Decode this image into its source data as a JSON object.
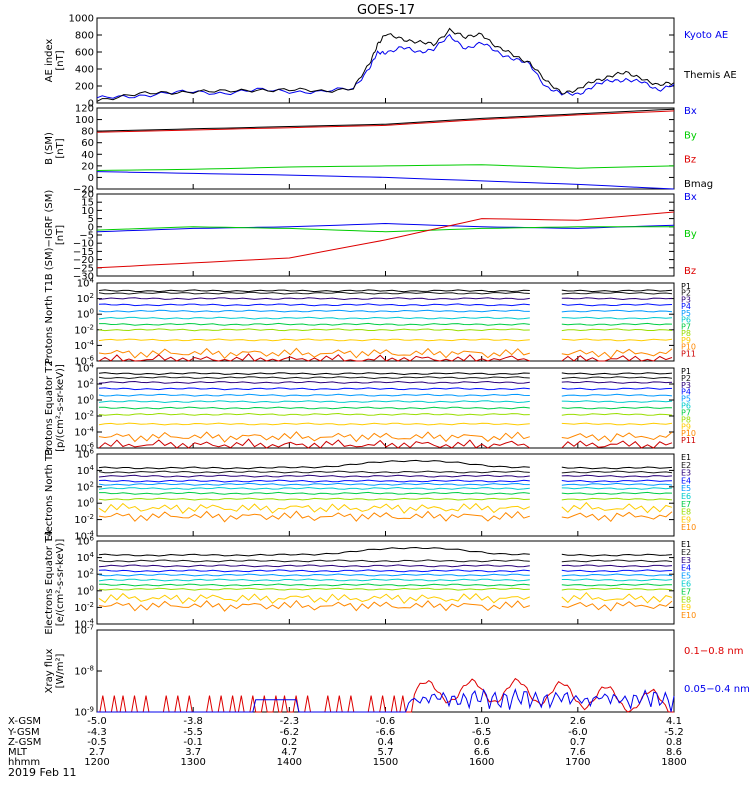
{
  "title": "GOES-17",
  "date_label": "2019 Feb 11",
  "colors": {
    "black": "#000000",
    "blue": "#0000ee",
    "green": "#00cc00",
    "red": "#dd0000",
    "bands": [
      "#000000",
      "#1a1a1a",
      "#2b007a",
      "#0010ff",
      "#0099ff",
      "#00cccc",
      "#00cc44",
      "#99dd00",
      "#ffcc00",
      "#ff8800",
      "#cc0000"
    ]
  },
  "time_axis": {
    "ticks": [
      "1200",
      "1300",
      "1400",
      "1500",
      "1600",
      "1700",
      "1800"
    ],
    "row_labels": [
      "X-GSM",
      "Y-GSM",
      "Z-GSM",
      "MLT",
      "hhmm"
    ],
    "rows": [
      [
        "-5.0",
        "-3.8",
        "-2.3",
        "-0.6",
        "1.0",
        "2.6",
        "4.1"
      ],
      [
        "-4.3",
        "-5.5",
        "-6.2",
        "-6.6",
        "-6.5",
        "-6.0",
        "-5.2"
      ],
      [
        "-0.5",
        "-0.1",
        "0.2",
        "0.4",
        "0.6",
        "0.7",
        "0.8"
      ],
      [
        "2.7",
        "3.7",
        "4.7",
        "5.7",
        "6.6",
        "7.6",
        "8.6"
      ],
      [
        "1200",
        "1300",
        "1400",
        "1500",
        "1600",
        "1700",
        "1800"
      ]
    ]
  },
  "chart_data": [
    {
      "type": "line",
      "ylabel": "AE index [nT]",
      "ylim": [
        0,
        1000
      ],
      "yticks": [
        "1000",
        "800",
        "600",
        "400",
        "200",
        "0"
      ],
      "series": [
        {
          "name": "Kyoto AE",
          "color": "#0000ee",
          "values": [
            [
              1200,
              50
            ],
            [
              1220,
              80
            ],
            [
              1240,
              110
            ],
            [
              1300,
              130
            ],
            [
              1320,
              120
            ],
            [
              1340,
              150
            ],
            [
              1400,
              140
            ],
            [
              1420,
              130
            ],
            [
              1440,
              170
            ],
            [
              1450,
              420
            ],
            [
              1455,
              580
            ],
            [
              1500,
              600
            ],
            [
              1510,
              650
            ],
            [
              1520,
              600
            ],
            [
              1530,
              640
            ],
            [
              1540,
              780
            ],
            [
              1550,
              650
            ],
            [
              1600,
              700
            ],
            [
              1610,
              600
            ],
            [
              1620,
              520
            ],
            [
              1630,
              450
            ],
            [
              1640,
              200
            ],
            [
              1650,
              100
            ],
            [
              1700,
              110
            ],
            [
              1710,
              200
            ],
            [
              1720,
              260
            ],
            [
              1730,
              280
            ],
            [
              1740,
              240
            ],
            [
              1750,
              160
            ],
            [
              1800,
              220
            ]
          ]
        },
        {
          "name": "Themis AE",
          "color": "#000000",
          "values": [
            [
              1200,
              40
            ],
            [
              1220,
              90
            ],
            [
              1240,
              120
            ],
            [
              1300,
              140
            ],
            [
              1320,
              130
            ],
            [
              1340,
              160
            ],
            [
              1400,
              150
            ],
            [
              1420,
              140
            ],
            [
              1440,
              180
            ],
            [
              1450,
              450
            ],
            [
              1455,
              700
            ],
            [
              1500,
              800
            ],
            [
              1510,
              760
            ],
            [
              1520,
              720
            ],
            [
              1530,
              680
            ],
            [
              1540,
              870
            ],
            [
              1550,
              760
            ],
            [
              1600,
              820
            ],
            [
              1610,
              650
            ],
            [
              1620,
              560
            ],
            [
              1630,
              480
            ],
            [
              1640,
              250
            ],
            [
              1650,
              130
            ],
            [
              1700,
              150
            ],
            [
              1710,
              260
            ],
            [
              1720,
              320
            ],
            [
              1730,
              350
            ],
            [
              1740,
              300
            ],
            [
              1750,
              200
            ],
            [
              1800,
              240
            ]
          ]
        }
      ]
    },
    {
      "type": "line",
      "ylabel": "B (SM) [nT]",
      "ylim": [
        -20,
        120
      ],
      "yticks": [
        "120",
        "100",
        "80",
        "60",
        "40",
        "20",
        "0",
        "−20"
      ],
      "series": [
        {
          "name": "Bx",
          "color": "#0000ee",
          "values": [
            [
              1200,
              10
            ],
            [
              1300,
              7
            ],
            [
              1400,
              4
            ],
            [
              1500,
              0
            ],
            [
              1600,
              -6
            ],
            [
              1700,
              -12
            ],
            [
              1800,
              -20
            ]
          ]
        },
        {
          "name": "By",
          "color": "#00cc00",
          "values": [
            [
              1200,
              12
            ],
            [
              1300,
              14
            ],
            [
              1400,
              18
            ],
            [
              1500,
              20
            ],
            [
              1600,
              22
            ],
            [
              1700,
              16
            ],
            [
              1800,
              20
            ]
          ]
        },
        {
          "name": "Bz",
          "color": "#dd0000",
          "values": [
            [
              1200,
              78
            ],
            [
              1300,
              82
            ],
            [
              1400,
              86
            ],
            [
              1500,
              90
            ],
            [
              1600,
              100
            ],
            [
              1700,
              108
            ],
            [
              1800,
              115
            ]
          ]
        },
        {
          "name": "Bmag",
          "color": "#000000",
          "values": [
            [
              1200,
              80
            ],
            [
              1300,
              84
            ],
            [
              1400,
              88
            ],
            [
              1500,
              92
            ],
            [
              1600,
              102
            ],
            [
              1700,
              110
            ],
            [
              1800,
              118
            ]
          ]
        }
      ]
    },
    {
      "type": "line",
      "ylabel": "B (SM)−IGRF (SM) [nT]",
      "ylim": [
        -30,
        20
      ],
      "yticks": [
        "20",
        "15",
        "10",
        "5",
        "0",
        "−5",
        "−10",
        "−15",
        "−20",
        "−25",
        "−30"
      ],
      "series": [
        {
          "name": "Bx",
          "color": "#0000ee",
          "values": [
            [
              1200,
              -3
            ],
            [
              1300,
              -1
            ],
            [
              1400,
              0
            ],
            [
              1500,
              2
            ],
            [
              1600,
              0
            ],
            [
              1700,
              -1
            ],
            [
              1800,
              1
            ]
          ]
        },
        {
          "name": "By",
          "color": "#00cc00",
          "values": [
            [
              1200,
              -2
            ],
            [
              1300,
              0
            ],
            [
              1400,
              -1
            ],
            [
              1500,
              -3
            ],
            [
              1600,
              -1
            ],
            [
              1700,
              0
            ],
            [
              1800,
              0
            ]
          ]
        },
        {
          "name": "Bz",
          "color": "#dd0000",
          "values": [
            [
              1200,
              -25
            ],
            [
              1300,
              -22
            ],
            [
              1400,
              -19
            ],
            [
              1500,
              -8
            ],
            [
              1600,
              5
            ],
            [
              1700,
              4
            ],
            [
              1800,
              9
            ]
          ]
        }
      ]
    },
    {
      "type": "line",
      "yscale": "log",
      "ylabel": "Protons North T1",
      "ylim_exp": [
        -6,
        4
      ],
      "yticks": [
        "10^4",
        "10^2",
        "10^0",
        "10^-2",
        "10^-4",
        "10^-6"
      ],
      "band_labels": [
        "P1",
        "P2",
        "P3",
        "P4",
        "P5",
        "P6",
        "P7",
        "P8",
        "P9",
        "P10",
        "P11"
      ],
      "levels_exp": [
        3.0,
        2.7,
        2.0,
        1.2,
        0.4,
        -0.5,
        -1.3,
        -2.0,
        -3.3,
        -5.0,
        -5.8
      ],
      "gap": [
        1630,
        1650
      ]
    },
    {
      "type": "line",
      "yscale": "log",
      "ylabel": "Protons Equator T2 [p/(cm²-s-sr-keV)]",
      "ylim_exp": [
        -6,
        4
      ],
      "yticks": [
        "10^4",
        "10^2",
        "10^0",
        "10^-2",
        "10^-4",
        "10^-6"
      ],
      "band_labels": [
        "P1",
        "P2",
        "P3",
        "P4",
        "P5",
        "P6",
        "P7",
        "P8",
        "P9",
        "P10",
        "P11"
      ],
      "levels_exp": [
        3.3,
        2.8,
        2.2,
        1.4,
        0.6,
        -0.2,
        -1.0,
        -1.8,
        -3.0,
        -4.6,
        -5.6
      ],
      "gap": [
        1630,
        1650
      ]
    },
    {
      "type": "line",
      "yscale": "log",
      "ylabel": "Electrons North T3",
      "ylim_exp": [
        -4,
        6
      ],
      "yticks": [
        "10^6",
        "10^4",
        "10^2",
        "10^0",
        "10^-2",
        "10^-4"
      ],
      "band_labels": [
        "E1",
        "E2",
        "E3",
        "E4",
        "E5",
        "E6",
        "E7",
        "E8",
        "E9",
        "E10"
      ],
      "levels_exp": [
        4.3,
        3.8,
        3.3,
        2.7,
        2.3,
        1.8,
        1.2,
        0.5,
        -0.6,
        -1.6
      ],
      "gap": [
        1630,
        1650
      ]
    },
    {
      "type": "line",
      "yscale": "log",
      "ylabel": "Electrons Equator T4 [e/(cm²-s-sr-keV)]",
      "ylim_exp": [
        -4,
        6
      ],
      "yticks": [
        "10^6",
        "10^4",
        "10^2",
        "10^0",
        "10^-2",
        "10^-4"
      ],
      "band_labels": [
        "E1",
        "E2",
        "E3",
        "E4",
        "E5",
        "E6",
        "E7",
        "E8",
        "E9",
        "E10"
      ],
      "levels_exp": [
        4.3,
        3.6,
        3.0,
        2.4,
        1.9,
        1.3,
        0.7,
        0.2,
        -0.9,
        -1.8
      ],
      "gap": [
        1630,
        1650
      ]
    },
    {
      "type": "line",
      "yscale": "log",
      "ylabel": "Xray flux [W/m²]",
      "ylim_exp": [
        -9,
        -7
      ],
      "yticks": [
        "10^-7",
        "10^-8",
        "10^-9"
      ],
      "series": [
        {
          "name": "0.1−0.8 nm",
          "color": "#dd0000"
        },
        {
          "name": "0.05−0.4 nm",
          "color": "#0000ee"
        }
      ]
    }
  ]
}
